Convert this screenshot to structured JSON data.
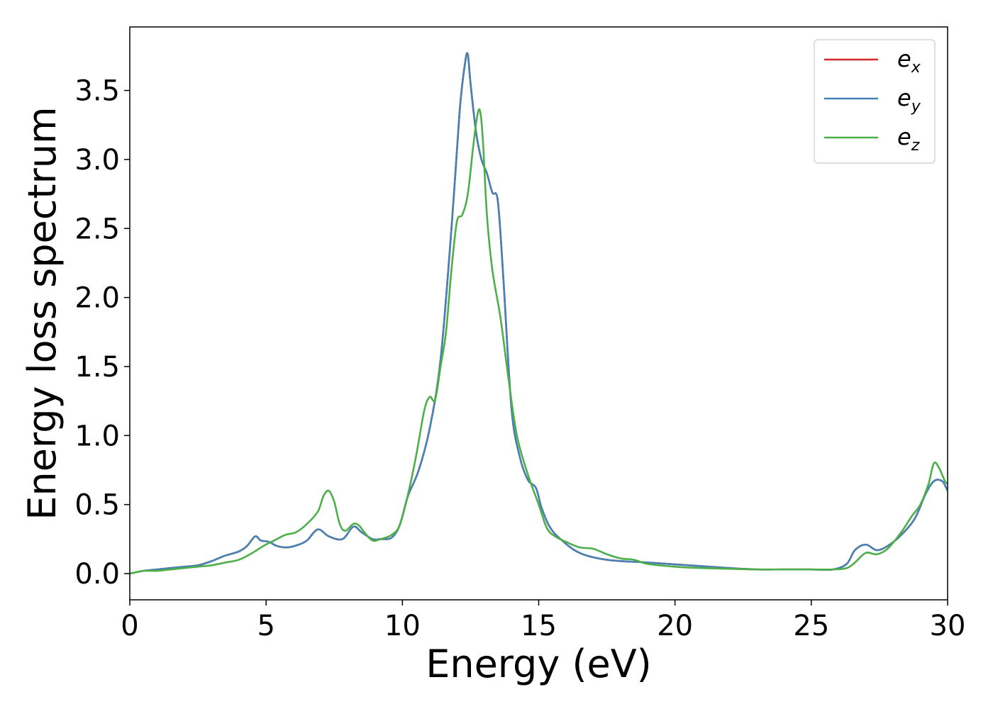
{
  "chart_data": {
    "type": "line",
    "xlabel": "Energy (eV)",
    "ylabel": "Energy loss spectrum",
    "xlim": [
      0,
      30
    ],
    "ylim": [
      -0.19,
      3.96
    ],
    "grid": false,
    "legend_position": "top-right",
    "x_ticks": [
      0,
      5,
      10,
      15,
      20,
      25,
      30
    ],
    "x_tick_labels": [
      "0",
      "5",
      "10",
      "15",
      "20",
      "25",
      "30"
    ],
    "y_ticks": [
      0.0,
      0.5,
      1.0,
      1.5,
      2.0,
      2.5,
      3.0,
      3.5
    ],
    "y_tick_labels": [
      "0.0",
      "0.5",
      "1.0",
      "1.5",
      "2.0",
      "2.5",
      "3.0",
      "3.5"
    ],
    "series": [
      {
        "name": "e_x",
        "legend_base": "e",
        "legend_sub": "x",
        "color": "#d62728",
        "x": [
          0,
          0.5,
          1,
          1.5,
          2,
          2.5,
          3,
          3.5,
          4,
          4.3,
          4.6,
          4.8,
          5.1,
          5.4,
          5.8,
          6.2,
          6.5,
          6.9,
          7.3,
          7.8,
          8.2,
          8.5,
          8.9,
          9.2,
          9.6,
          9.9,
          10.2,
          10.6,
          11,
          11.4,
          11.8,
          12.1,
          12.3,
          12.4,
          12.5,
          12.7,
          12.9,
          13.1,
          13.3,
          13.5,
          13.7,
          14,
          14.3,
          14.6,
          14.9,
          15.1,
          15.4,
          15.8,
          16.5,
          17.5,
          19,
          20.5,
          22,
          23,
          24,
          25,
          25.8,
          26.3,
          26.6,
          27,
          27.4,
          27.8,
          28.3,
          28.8,
          29.2,
          29.5,
          29.8,
          30
        ],
        "values": [
          0.0,
          0.02,
          0.03,
          0.04,
          0.05,
          0.06,
          0.09,
          0.13,
          0.16,
          0.2,
          0.27,
          0.24,
          0.23,
          0.2,
          0.19,
          0.21,
          0.24,
          0.32,
          0.27,
          0.25,
          0.34,
          0.3,
          0.25,
          0.25,
          0.26,
          0.35,
          0.56,
          0.75,
          1.05,
          1.55,
          2.5,
          3.35,
          3.7,
          3.76,
          3.55,
          3.2,
          3.0,
          2.9,
          2.76,
          2.7,
          2.15,
          1.2,
          0.85,
          0.68,
          0.62,
          0.48,
          0.34,
          0.25,
          0.15,
          0.1,
          0.08,
          0.06,
          0.04,
          0.03,
          0.03,
          0.03,
          0.03,
          0.07,
          0.17,
          0.21,
          0.17,
          0.2,
          0.28,
          0.4,
          0.58,
          0.67,
          0.67,
          0.6
        ]
      },
      {
        "name": "e_y",
        "legend_base": "e",
        "legend_sub": "y",
        "color": "#4682b4",
        "x": [
          0,
          0.5,
          1,
          1.5,
          2,
          2.5,
          3,
          3.5,
          4,
          4.3,
          4.6,
          4.8,
          5.1,
          5.4,
          5.8,
          6.2,
          6.5,
          6.9,
          7.3,
          7.8,
          8.2,
          8.5,
          8.9,
          9.2,
          9.6,
          9.9,
          10.2,
          10.6,
          11,
          11.4,
          11.8,
          12.1,
          12.3,
          12.4,
          12.5,
          12.7,
          12.9,
          13.1,
          13.3,
          13.5,
          13.7,
          14,
          14.3,
          14.6,
          14.9,
          15.1,
          15.4,
          15.8,
          16.5,
          17.5,
          19,
          20.5,
          22,
          23,
          24,
          25,
          25.8,
          26.3,
          26.6,
          27,
          27.4,
          27.8,
          28.3,
          28.8,
          29.2,
          29.5,
          29.8,
          30
        ],
        "values": [
          0.0,
          0.02,
          0.03,
          0.04,
          0.05,
          0.06,
          0.09,
          0.13,
          0.16,
          0.2,
          0.27,
          0.24,
          0.23,
          0.2,
          0.19,
          0.21,
          0.24,
          0.32,
          0.27,
          0.25,
          0.34,
          0.3,
          0.25,
          0.25,
          0.26,
          0.35,
          0.56,
          0.75,
          1.05,
          1.55,
          2.5,
          3.35,
          3.7,
          3.76,
          3.55,
          3.2,
          3.0,
          2.9,
          2.76,
          2.7,
          2.15,
          1.2,
          0.85,
          0.68,
          0.62,
          0.48,
          0.34,
          0.25,
          0.15,
          0.1,
          0.08,
          0.06,
          0.04,
          0.03,
          0.03,
          0.03,
          0.03,
          0.07,
          0.17,
          0.21,
          0.17,
          0.2,
          0.28,
          0.4,
          0.58,
          0.67,
          0.67,
          0.6
        ]
      },
      {
        "name": "e_z",
        "legend_base": "e",
        "legend_sub": "z",
        "color": "#4daf4a",
        "x": [
          0,
          0.5,
          1,
          1.5,
          2,
          2.5,
          3,
          3.5,
          4,
          4.5,
          4.9,
          5.3,
          5.7,
          6.1,
          6.5,
          6.9,
          7.1,
          7.3,
          7.5,
          7.7,
          7.9,
          8.2,
          8.4,
          8.6,
          8.9,
          9.2,
          9.6,
          9.9,
          10.2,
          10.5,
          10.8,
          11.0,
          11.2,
          11.4,
          11.6,
          11.8,
          12.0,
          12.2,
          12.4,
          12.6,
          12.75,
          12.85,
          12.95,
          13.1,
          13.3,
          13.6,
          13.9,
          14.2,
          14.6,
          15.0,
          15.3,
          15.6,
          16.0,
          16.5,
          17.0,
          17.5,
          18.0,
          18.5,
          19,
          20,
          21,
          22,
          23,
          24,
          25,
          25.8,
          26.3,
          26.6,
          27,
          27.4,
          27.8,
          28.3,
          28.7,
          29.0,
          29.3,
          29.5,
          29.7,
          29.9,
          30
        ],
        "values": [
          0.0,
          0.02,
          0.02,
          0.03,
          0.04,
          0.05,
          0.06,
          0.08,
          0.1,
          0.15,
          0.2,
          0.24,
          0.28,
          0.3,
          0.36,
          0.45,
          0.56,
          0.6,
          0.52,
          0.36,
          0.31,
          0.36,
          0.35,
          0.3,
          0.24,
          0.25,
          0.28,
          0.35,
          0.57,
          0.85,
          1.18,
          1.28,
          1.26,
          1.5,
          1.75,
          2.2,
          2.55,
          2.6,
          2.75,
          3.1,
          3.32,
          3.35,
          3.15,
          2.6,
          2.2,
          1.85,
          1.4,
          1.0,
          0.72,
          0.5,
          0.33,
          0.27,
          0.23,
          0.19,
          0.18,
          0.14,
          0.11,
          0.1,
          0.07,
          0.05,
          0.04,
          0.035,
          0.03,
          0.03,
          0.03,
          0.03,
          0.04,
          0.08,
          0.15,
          0.14,
          0.18,
          0.3,
          0.42,
          0.5,
          0.65,
          0.8,
          0.76,
          0.67,
          0.65
        ]
      }
    ]
  }
}
